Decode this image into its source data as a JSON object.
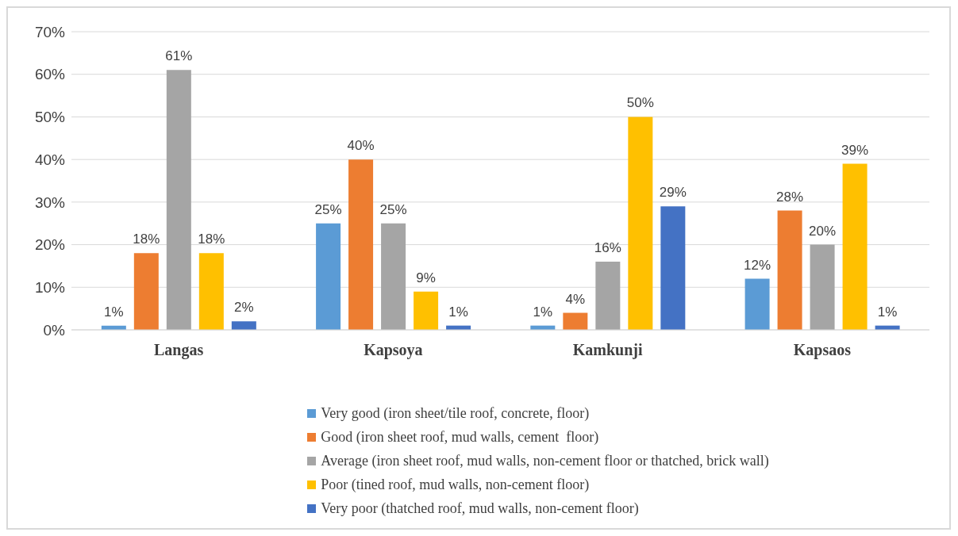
{
  "chart_data": {
    "type": "bar",
    "categories": [
      "Langas",
      "Kapsoya",
      "Kamkunji",
      "Kapsaos"
    ],
    "series": [
      {
        "name": "Very good (iron sheet/tile roof, concrete, floor)",
        "color": "#5b9bd5",
        "values": [
          1,
          25,
          1,
          12
        ],
        "value_labels": [
          "1%",
          "25%",
          "1%",
          "12%"
        ]
      },
      {
        "name": "Good (iron sheet roof, mud walls, cement  floor)",
        "color": "#ed7d31",
        "values": [
          18,
          40,
          4,
          28
        ],
        "value_labels": [
          "18%",
          "40%",
          "4%",
          "28%"
        ]
      },
      {
        "name": "Average (iron sheet roof, mud walls, non-cement floor or thatched, brick wall)",
        "color": "#a5a5a5",
        "values": [
          61,
          25,
          16,
          20
        ],
        "value_labels": [
          "61%",
          "25%",
          "16%",
          "20%"
        ]
      },
      {
        "name": "Poor (tined roof, mud walls, non-cement floor)",
        "color": "#ffc000",
        "values": [
          18,
          9,
          50,
          39
        ],
        "value_labels": [
          "18%",
          "9%",
          "50%",
          "39%"
        ]
      },
      {
        "name": "Very poor (thatched roof, mud walls, non-cement floor)",
        "color": "#4472c4",
        "values": [
          2,
          1,
          29,
          1
        ],
        "value_labels": [
          "2%",
          "1%",
          "29%",
          "1%"
        ]
      }
    ],
    "ylim": [
      0,
      70
    ],
    "yticks": [
      {
        "value": 0,
        "label": "0%"
      },
      {
        "value": 10,
        "label": "10%"
      },
      {
        "value": 20,
        "label": "20%"
      },
      {
        "value": 30,
        "label": "30%"
      },
      {
        "value": 40,
        "label": "40%"
      },
      {
        "value": 50,
        "label": "50%"
      },
      {
        "value": 60,
        "label": "60%"
      },
      {
        "value": 70,
        "label": "70%"
      }
    ],
    "grid": "y",
    "legend": "bottom"
  }
}
